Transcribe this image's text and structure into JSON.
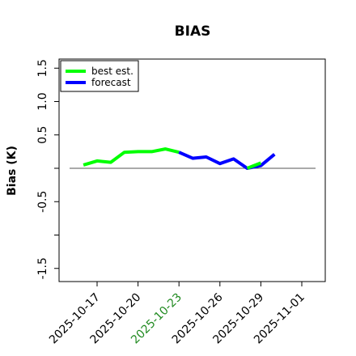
{
  "chart_data": {
    "type": "line",
    "title": "BIAS",
    "ylabel": "Bias (K)",
    "xlabel": "",
    "ylim": [
      -1.6,
      1.6
    ],
    "y_ticks": [
      -1.5,
      -1.0,
      -0.5,
      0.0,
      0.5,
      1.0,
      1.5
    ],
    "y_tick_labels": [
      "-1.5",
      "",
      "-0.5",
      "",
      "0.5",
      "1.0",
      "1.5"
    ],
    "x_tick_labels": [
      "2025-10-17",
      "2025-10-20",
      "2025-10-23",
      "2025-10-26",
      "2025-10-29",
      "2025-11-01"
    ],
    "highlight_tick": "2025-10-23",
    "highlight_color": "#228B22",
    "reference_line": 0,
    "legend": {
      "placement": "top-left",
      "entries": [
        "best est.",
        "forecast"
      ]
    },
    "series": [
      {
        "name": "best est.",
        "color": "#00FF00",
        "x": [
          "2025-10-16",
          "2025-10-17",
          "2025-10-18",
          "2025-10-19",
          "2025-10-20",
          "2025-10-21",
          "2025-10-22",
          "2025-10-23"
        ],
        "values": [
          0.05,
          0.11,
          0.09,
          0.24,
          0.25,
          0.25,
          0.29,
          0.24
        ]
      },
      {
        "name": "forecast",
        "color": "#0000FF",
        "x": [
          "2025-10-23",
          "2025-10-24",
          "2025-10-25",
          "2025-10-26",
          "2025-10-27",
          "2025-10-28",
          "2025-10-29",
          "2025-10-30"
        ],
        "values": [
          0.24,
          0.15,
          0.17,
          0.07,
          0.14,
          0.0,
          0.04,
          0.21
        ]
      },
      {
        "name": "best est.",
        "color": "#00FF00",
        "x": [
          "2025-10-28",
          "2025-10-29"
        ],
        "values": [
          0.0,
          0.08
        ]
      }
    ]
  }
}
